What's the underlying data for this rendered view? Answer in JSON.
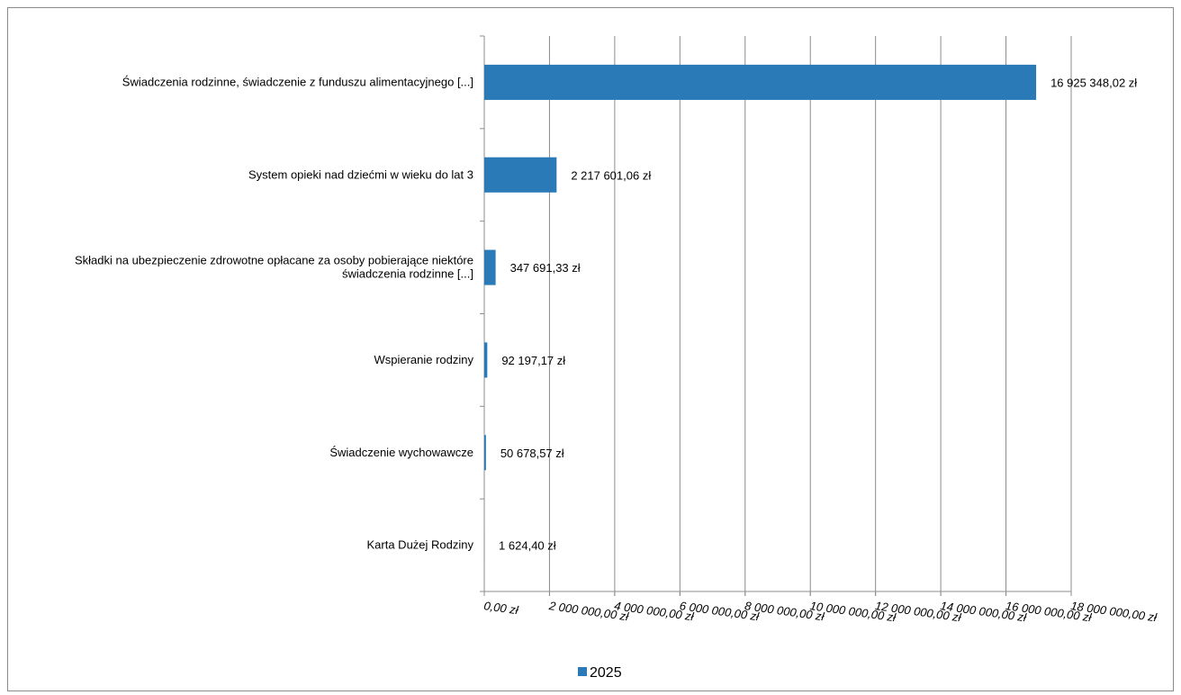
{
  "chart_data": {
    "type": "bar",
    "orientation": "horizontal",
    "categories": [
      [
        "Świadczenia rodzinne, świadczenie z funduszu alimentacyjnego [...]"
      ],
      [
        "System opieki nad dziećmi w wieku do lat 3"
      ],
      [
        "Składki na ubezpieczenie zdrowotne opłacane za osoby pobierające niektóre",
        "świadczenia rodzinne [...]"
      ],
      [
        "Wspieranie rodziny"
      ],
      [
        "Świadczenie wychowawcze"
      ],
      [
        "Karta Dużej Rodziny"
      ]
    ],
    "series": [
      {
        "name": "2025",
        "color": "#2a7ab7",
        "values": [
          16925348.02,
          2217601.06,
          347691.33,
          92197.17,
          50678.57,
          1624.4
        ],
        "data_labels": [
          "16 925 348,02 zł",
          "2 217 601,06 zł",
          "347 691,33 zł",
          "92 197,17 zł",
          "50 678,57 zł",
          "1 624,40 zł"
        ]
      }
    ],
    "xlim": [
      0,
      18000000
    ],
    "x_ticks": [
      0,
      2000000,
      4000000,
      6000000,
      8000000,
      10000000,
      12000000,
      14000000,
      16000000,
      18000000
    ],
    "x_tick_labels": [
      "0,00 zł",
      "2 000 000,00 zł",
      "4 000 000,00 zł",
      "6 000 000,00 zł",
      "8 000 000,00 zł",
      "10 000 000,00 zł",
      "12 000 000,00 zł",
      "14 000 000,00 zł",
      "16 000 000,00 zł",
      "18 000 000,00 zł"
    ],
    "grid": "vertical",
    "legend_position": "bottom"
  },
  "legend": {
    "label": "2025",
    "color": "#2a7ab7"
  }
}
